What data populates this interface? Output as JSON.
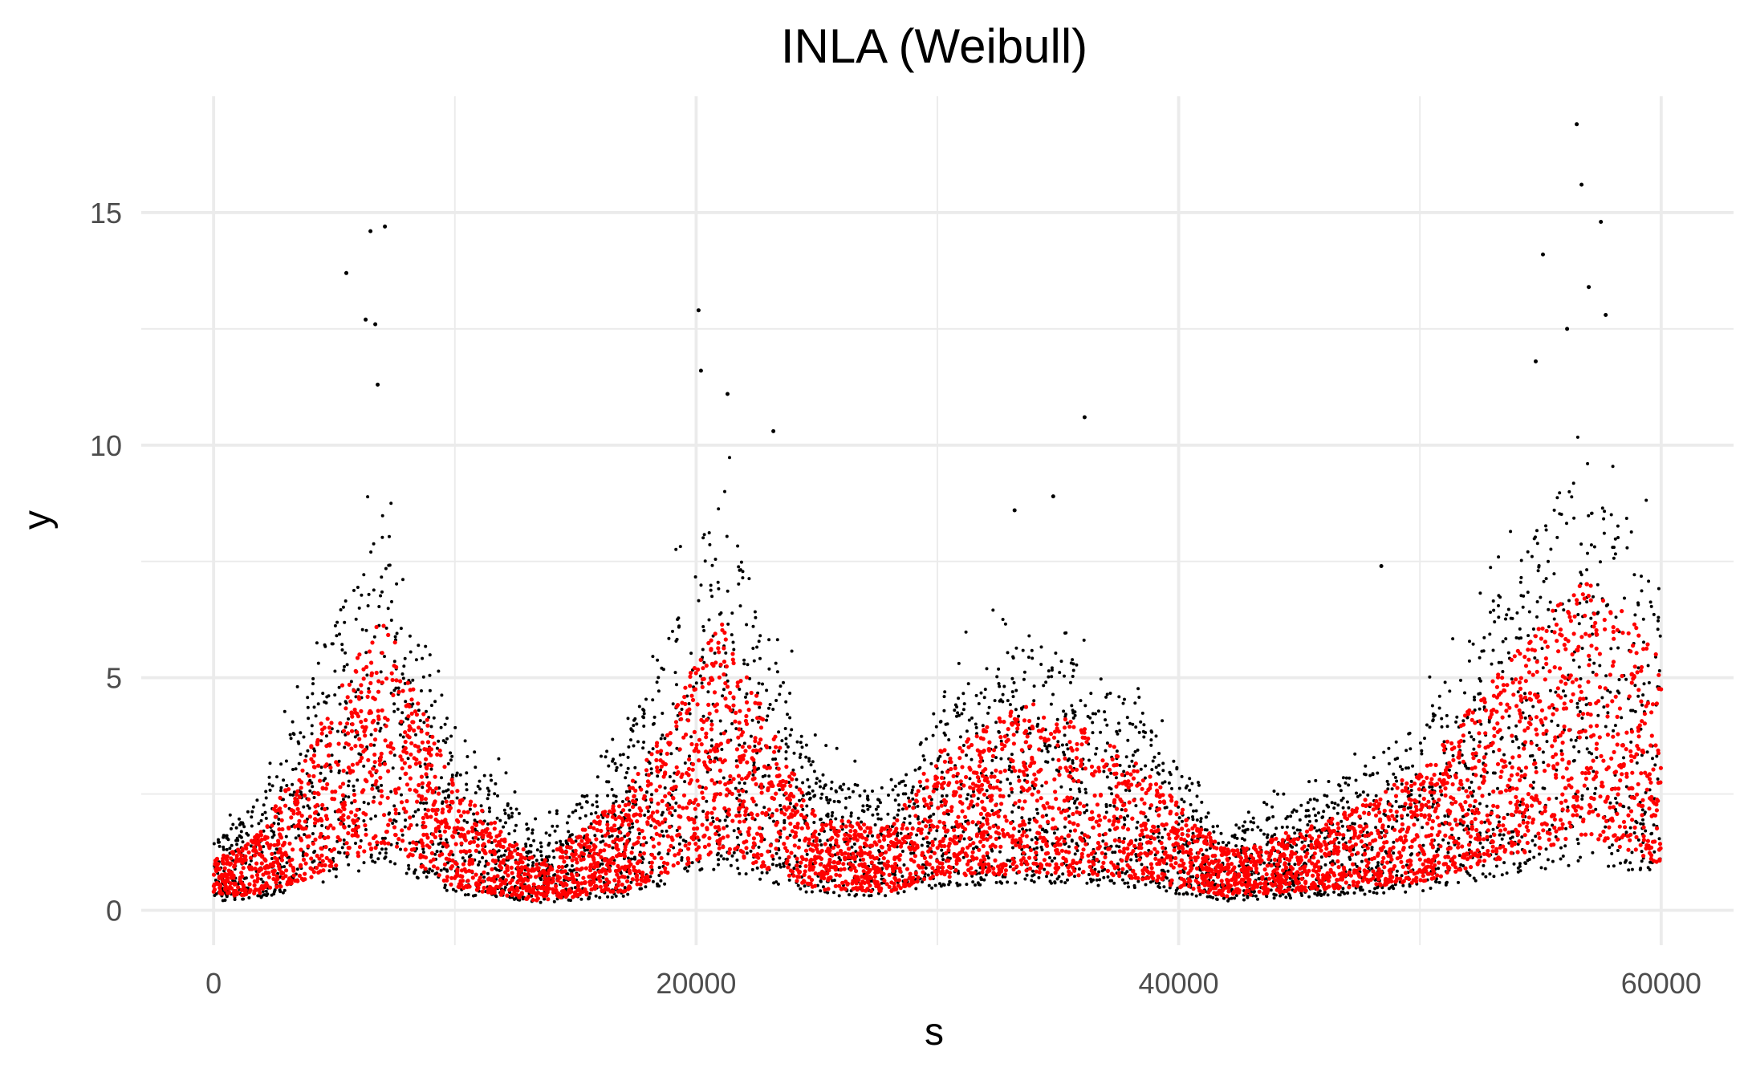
{
  "chart_data": {
    "type": "scatter",
    "title": "INLA (Weibull)",
    "xlabel": "s",
    "ylabel": "y",
    "xlim": [
      -3000,
      63000
    ],
    "ylim": [
      -0.75,
      17.5
    ],
    "x_ticks": [
      0,
      20000,
      40000,
      60000
    ],
    "x_tick_labels": [
      "0",
      "20000",
      "40000",
      "60000"
    ],
    "x_minor_ticks": [
      10000,
      30000,
      50000
    ],
    "y_ticks": [
      0,
      5,
      10,
      15
    ],
    "y_tick_labels": [
      "0",
      "5",
      "10",
      "15"
    ],
    "y_minor_ticks": [
      2.5,
      7.5,
      12.5
    ],
    "grid": true,
    "legend": "none",
    "series": [
      {
        "color": "#000000",
        "role": "observed points",
        "count_shown": 60000,
        "envelope": {
          "x": [
            0,
            2000,
            4000,
            7000,
            10000,
            13500,
            17000,
            21000,
            25000,
            28000,
            30000,
            34000,
            38000,
            42000,
            46000,
            50000,
            54000,
            57000,
            60000
          ],
          "lower": [
            0.2,
            0.25,
            0.5,
            1.0,
            0.35,
            0.15,
            0.3,
            0.9,
            0.3,
            0.3,
            0.5,
            0.6,
            0.5,
            0.2,
            0.3,
            0.4,
            0.8,
            1.0,
            0.7
          ],
          "upper": [
            1.5,
            2.5,
            5.0,
            8.5,
            4.0,
            1.5,
            3.5,
            9.0,
            3.0,
            2.5,
            4.5,
            6.0,
            4.5,
            1.8,
            2.5,
            4.0,
            7.5,
            10.0,
            7.0
          ]
        },
        "outliers": [
          {
            "x": 5500,
            "y": 13.7
          },
          {
            "x": 6500,
            "y": 14.6
          },
          {
            "x": 7100,
            "y": 14.7
          },
          {
            "x": 6300,
            "y": 12.7
          },
          {
            "x": 6700,
            "y": 12.6
          },
          {
            "x": 6800,
            "y": 11.3
          },
          {
            "x": 20100,
            "y": 12.9
          },
          {
            "x": 20200,
            "y": 11.6
          },
          {
            "x": 21300,
            "y": 11.1
          },
          {
            "x": 23200,
            "y": 10.3
          },
          {
            "x": 36100,
            "y": 10.6
          },
          {
            "x": 33200,
            "y": 8.6
          },
          {
            "x": 34800,
            "y": 8.9
          },
          {
            "x": 48400,
            "y": 7.4
          },
          {
            "x": 55100,
            "y": 14.1
          },
          {
            "x": 56500,
            "y": 16.9
          },
          {
            "x": 56700,
            "y": 15.6
          },
          {
            "x": 57500,
            "y": 14.8
          },
          {
            "x": 56100,
            "y": 12.5
          },
          {
            "x": 57000,
            "y": 13.4
          },
          {
            "x": 57700,
            "y": 12.8
          },
          {
            "x": 54800,
            "y": 11.8
          }
        ]
      },
      {
        "color": "#ff0000",
        "role": "fitted points",
        "count_shown": 60000,
        "envelope": {
          "x": [
            0,
            2000,
            4000,
            7000,
            10000,
            13500,
            17000,
            21000,
            25000,
            28000,
            30000,
            34000,
            38000,
            42000,
            46000,
            50000,
            54000,
            57000,
            60000
          ],
          "lower": [
            0.3,
            0.35,
            0.7,
            1.4,
            0.5,
            0.2,
            0.4,
            1.3,
            0.45,
            0.4,
            0.7,
            0.8,
            0.7,
            0.3,
            0.45,
            0.6,
            1.2,
            1.6,
            1.0
          ],
          "upper": [
            1.1,
            1.7,
            3.6,
            6.4,
            2.7,
            1.0,
            2.5,
            6.3,
            2.0,
            1.8,
            3.4,
            4.6,
            3.3,
            1.3,
            1.9,
            3.0,
            5.6,
            7.3,
            5.5
          ]
        }
      }
    ]
  }
}
